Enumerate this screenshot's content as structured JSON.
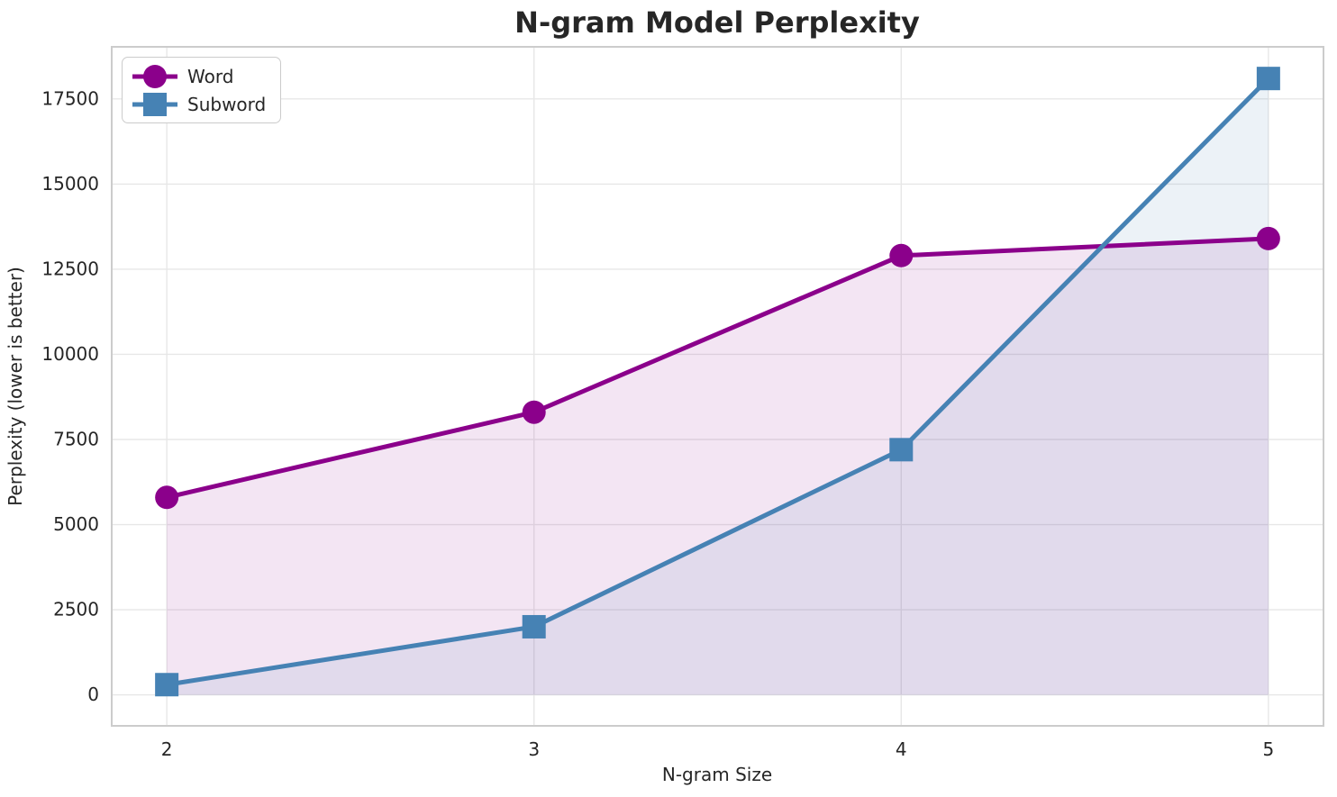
{
  "page": {
    "background": "#ffffff"
  },
  "chart_data": {
    "type": "line",
    "title": "N-gram Model Perplexity",
    "xlabel": "N-gram Size",
    "ylabel": "Perplexity (lower is better)",
    "x": [
      2,
      3,
      4,
      5
    ],
    "series": [
      {
        "name": "Word",
        "color": "#8B008B",
        "marker": "circle",
        "values": [
          5800,
          8300,
          12900,
          13400
        ]
      },
      {
        "name": "Subword",
        "color": "#4682B4",
        "marker": "square",
        "values": [
          300,
          2000,
          7200,
          18100
        ]
      }
    ],
    "fill_to_zero": true,
    "fill_alpha": 0.1,
    "xticks": [
      "2",
      "3",
      "4",
      "5"
    ],
    "xtick_values": [
      2,
      3,
      4,
      5
    ],
    "yticks": [
      "0",
      "2500",
      "5000",
      "7500",
      "10000",
      "12500",
      "15000",
      "17500"
    ],
    "ytick_values": [
      0,
      2500,
      5000,
      7500,
      10000,
      12500,
      15000,
      17500
    ],
    "xlim": [
      1.85,
      5.15
    ],
    "ylim": [
      -910,
      19030
    ],
    "grid": true,
    "legend_position": "upper-left",
    "styles": {
      "grid_color": "#e7e7e7",
      "spine_color": "#cccccc",
      "text_color": "#262626",
      "line_width": 5,
      "marker_size": 26
    }
  }
}
